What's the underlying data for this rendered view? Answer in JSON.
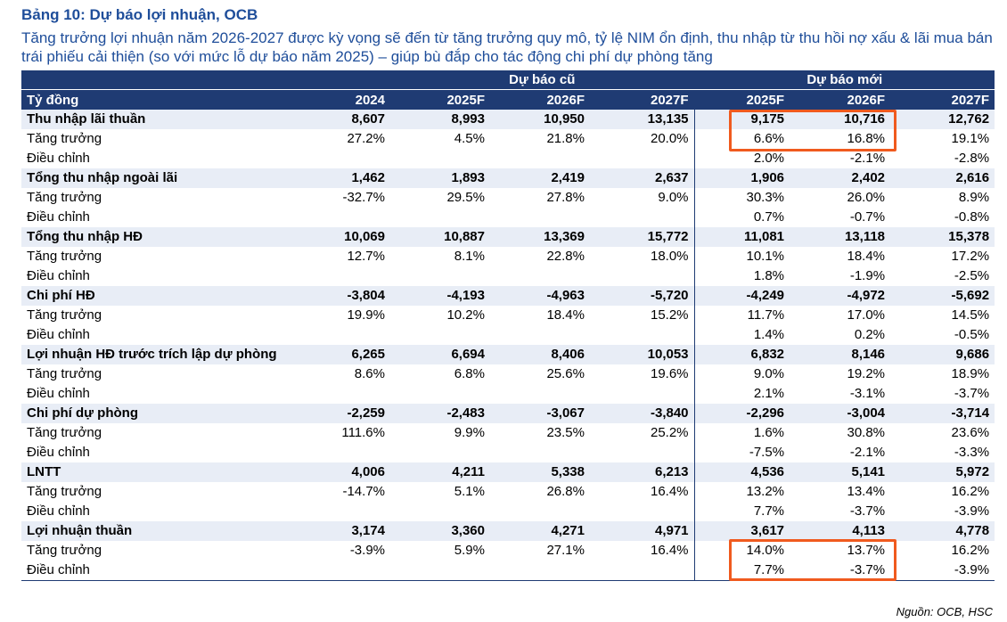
{
  "title": "Bảng 10: Dự báo lợi nhuận, OCB",
  "subtitle": "Tăng trưởng lợi nhuận năm 2026-2027 được kỳ vọng sẽ đến từ tăng trưởng quy mô, tỷ lệ NIM ổn định, thu nhập từ thu hồi nợ xấu & lãi mua bán trái phiếu cải thiện (so với mức lỗ dự báo năm 2025) – giúp bù đắp cho tác động chi phí dự phòng tăng",
  "header": {
    "group_old": "Dự báo cũ",
    "group_new": "Dự báo mới",
    "unit": "Tỷ đồng",
    "cols": [
      "2024",
      "2025F",
      "2026F",
      "2027F",
      "2025F",
      "2026F",
      "2027F"
    ]
  },
  "rows": [
    {
      "label": "Thu nhập lãi thuần",
      "cells": [
        "8,607",
        "8,993",
        "10,950",
        "13,135",
        "9,175",
        "10,716",
        "12,762"
      ]
    },
    {
      "label": "Tăng trưởng",
      "cells": [
        "27.2%",
        "4.5%",
        "21.8%",
        "20.0%",
        "6.6%",
        "16.8%",
        "19.1%"
      ]
    },
    {
      "label": "Điều chỉnh",
      "cells": [
        "",
        "",
        "",
        "",
        "2.0%",
        "-2.1%",
        "-2.8%"
      ]
    },
    {
      "label": "Tổng thu nhập ngoài lãi",
      "cells": [
        "1,462",
        "1,893",
        "2,419",
        "2,637",
        "1,906",
        "2,402",
        "2,616"
      ]
    },
    {
      "label": "Tăng trưởng",
      "cells": [
        "-32.7%",
        "29.5%",
        "27.8%",
        "9.0%",
        "30.3%",
        "26.0%",
        "8.9%"
      ]
    },
    {
      "label": "Điều chỉnh",
      "cells": [
        "",
        "",
        "",
        "",
        "0.7%",
        "-0.7%",
        "-0.8%"
      ]
    },
    {
      "label": "Tổng thu nhập HĐ",
      "cells": [
        "10,069",
        "10,887",
        "13,369",
        "15,772",
        "11,081",
        "13,118",
        "15,378"
      ]
    },
    {
      "label": "Tăng trưởng",
      "cells": [
        "12.7%",
        "8.1%",
        "22.8%",
        "18.0%",
        "10.1%",
        "18.4%",
        "17.2%"
      ]
    },
    {
      "label": "Điều chỉnh",
      "cells": [
        "",
        "",
        "",
        "",
        "1.8%",
        "-1.9%",
        "-2.5%"
      ]
    },
    {
      "label": "Chi phí HĐ",
      "cells": [
        "-3,804",
        "-4,193",
        "-4,963",
        "-5,720",
        "-4,249",
        "-4,972",
        "-5,692"
      ]
    },
    {
      "label": "Tăng trưởng",
      "cells": [
        "19.9%",
        "10.2%",
        "18.4%",
        "15.2%",
        "11.7%",
        "17.0%",
        "14.5%"
      ]
    },
    {
      "label": "Điều chỉnh",
      "cells": [
        "",
        "",
        "",
        "",
        "1.4%",
        "0.2%",
        "-0.5%"
      ]
    },
    {
      "label": "Lợi nhuận HĐ trước trích lập dự phòng",
      "cells": [
        "6,265",
        "6,694",
        "8,406",
        "10,053",
        "6,832",
        "8,146",
        "9,686"
      ]
    },
    {
      "label": "Tăng trưởng",
      "cells": [
        "8.6%",
        "6.8%",
        "25.6%",
        "19.6%",
        "9.0%",
        "19.2%",
        "18.9%"
      ]
    },
    {
      "label": "Điều chỉnh",
      "cells": [
        "",
        "",
        "",
        "",
        "2.1%",
        "-3.1%",
        "-3.7%"
      ]
    },
    {
      "label": "Chi phí dự phòng",
      "cells": [
        "-2,259",
        "-2,483",
        "-3,067",
        "-3,840",
        "-2,296",
        "-3,004",
        "-3,714"
      ]
    },
    {
      "label": "Tăng trưởng",
      "cells": [
        "111.6%",
        "9.9%",
        "23.5%",
        "25.2%",
        "1.6%",
        "30.8%",
        "23.6%"
      ]
    },
    {
      "label": "Điều chỉnh",
      "cells": [
        "",
        "",
        "",
        "",
        "-7.5%",
        "-2.1%",
        "-3.3%"
      ]
    },
    {
      "label": "LNTT",
      "cells": [
        "4,006",
        "4,211",
        "5,338",
        "6,213",
        "4,536",
        "5,141",
        "5,972"
      ]
    },
    {
      "label": "Tăng trưởng",
      "cells": [
        "-14.7%",
        "5.1%",
        "26.8%",
        "16.4%",
        "13.2%",
        "13.4%",
        "16.2%"
      ]
    },
    {
      "label": "Điều chỉnh",
      "cells": [
        "",
        "",
        "",
        "",
        "7.7%",
        "-3.7%",
        "-3.9%"
      ]
    },
    {
      "label": "Lợi nhuận thuần",
      "cells": [
        "3,174",
        "3,360",
        "4,271",
        "4,971",
        "3,617",
        "4,113",
        "4,778"
      ]
    },
    {
      "label": "Tăng trưởng",
      "cells": [
        "-3.9%",
        "5.9%",
        "27.1%",
        "16.4%",
        "14.0%",
        "13.7%",
        "16.2%"
      ]
    },
    {
      "label": "Điều chỉnh",
      "cells": [
        "",
        "",
        "",
        "",
        "7.7%",
        "-3.7%",
        "-3.9%"
      ]
    }
  ],
  "highlight_color": "#f05a1e",
  "header_color": "#1f3b73",
  "title_color": "#1f4e9a",
  "source": "Nguồn: OCB, HSC"
}
